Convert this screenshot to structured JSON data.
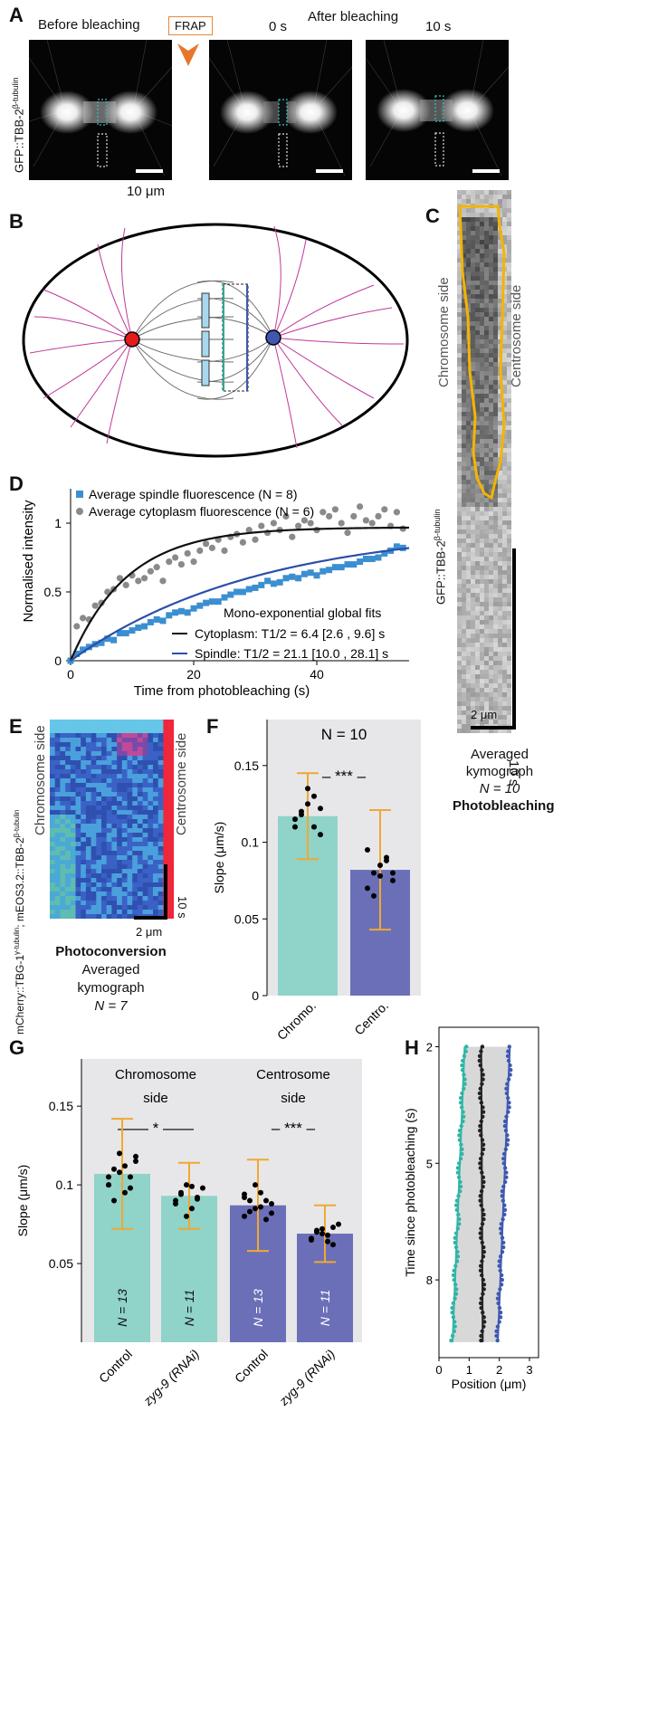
{
  "panels": {
    "A": "A",
    "B": "B",
    "C": "C",
    "D": "D",
    "E": "E",
    "F": "F",
    "G": "G",
    "H": "H"
  },
  "panelA": {
    "before": "Before bleaching",
    "after": "After bleaching",
    "frap": "FRAP",
    "t0": "0 s",
    "t10": "10 s",
    "ylabel_main": "GFP::TBB-2",
    "ylabel_sup": "β-tubulin",
    "scale": "10 μm"
  },
  "panelC": {
    "chromosome_side": "Chromosome side",
    "centrosome_side": "Centrosome side",
    "ylabel_main": "GFP::TBB-2",
    "ylabel_sup": "β-tubulin",
    "time_scale": "10 s",
    "space_scale": "2 μm",
    "caption1": "Averaged",
    "caption2": "kymograph",
    "caption3": "N = 10",
    "caption4": "Photobleaching"
  },
  "panelE": {
    "chromosome_side": "Chromosome side",
    "centrosome_side": "Centrosome side",
    "ylabel_a": "mCherry::TBG-1",
    "ylabel_a_sup": "γ-tubulin",
    "ylabel_b": "; mEOS3.2::TBB-2",
    "ylabel_b_sup": "β-tubulin",
    "time_scale": "10 s",
    "space_scale": "2 μm",
    "caption1": "Photoconversion",
    "caption2": "Averaged",
    "caption3": "kymograph",
    "caption4": "N = 7"
  },
  "chart_data": [
    {
      "id": "D",
      "type": "scatter",
      "xlabel": "Time from photobleaching (s)",
      "ylabel": "Normalised intensity",
      "xlim": [
        0,
        55
      ],
      "ylim": [
        0,
        1.25
      ],
      "xticks": [
        0,
        20,
        40
      ],
      "yticks": [
        0,
        0.5,
        1
      ],
      "legend": [
        "Average spindle fluorescence (N = 8)",
        "Average cytoplasm fluorescence (N = 6)"
      ],
      "fits_title": "Mono-exponential global fits",
      "fit_labels": [
        "Cytoplasm: T1/2 = 6.4 [2.6 , 9.6] s",
        "Spindle: T1/2 = 21.1 [10.0 , 28.1] s"
      ],
      "series": [
        {
          "name": "Average spindle fluorescence (N = 8)",
          "color": "#3b8fd0",
          "x": [
            0,
            1,
            2,
            3,
            4,
            5,
            6,
            7,
            8,
            9,
            10,
            11,
            12,
            13,
            14,
            15,
            16,
            17,
            18,
            19,
            20,
            21,
            22,
            23,
            24,
            25,
            26,
            27,
            28,
            29,
            30,
            31,
            32,
            33,
            34,
            35,
            36,
            37,
            38,
            39,
            40,
            41,
            42,
            43,
            44,
            45,
            46,
            47,
            48,
            49,
            50,
            51,
            52,
            53,
            54
          ],
          "y": [
            0.0,
            0.05,
            0.08,
            0.1,
            0.12,
            0.13,
            0.16,
            0.15,
            0.2,
            0.2,
            0.22,
            0.24,
            0.25,
            0.28,
            0.3,
            0.29,
            0.33,
            0.35,
            0.36,
            0.35,
            0.38,
            0.4,
            0.42,
            0.43,
            0.43,
            0.46,
            0.48,
            0.5,
            0.5,
            0.52,
            0.53,
            0.55,
            0.58,
            0.56,
            0.57,
            0.6,
            0.61,
            0.6,
            0.63,
            0.64,
            0.62,
            0.65,
            0.66,
            0.68,
            0.68,
            0.7,
            0.7,
            0.72,
            0.74,
            0.74,
            0.75,
            0.78,
            0.8,
            0.83,
            0.82
          ]
        },
        {
          "name": "Average cytoplasm fluorescence (N = 6)",
          "color": "#8a8a8a",
          "x": [
            1,
            2,
            3,
            4,
            5,
            6,
            7,
            8,
            9,
            10,
            11,
            12,
            13,
            14,
            15,
            16,
            17,
            18,
            19,
            20,
            21,
            22,
            23,
            24,
            25,
            26,
            27,
            28,
            29,
            30,
            31,
            32,
            33,
            34,
            35,
            36,
            37,
            38,
            39,
            40,
            41,
            42,
            43,
            44,
            45,
            46,
            47,
            48,
            49,
            50,
            51,
            52,
            53,
            54
          ],
          "y": [
            0.25,
            0.31,
            0.3,
            0.4,
            0.42,
            0.5,
            0.52,
            0.6,
            0.55,
            0.62,
            0.58,
            0.6,
            0.65,
            0.68,
            0.58,
            0.72,
            0.75,
            0.7,
            0.78,
            0.72,
            0.8,
            0.85,
            0.82,
            0.88,
            0.8,
            0.9,
            0.92,
            0.86,
            0.95,
            0.88,
            0.98,
            0.93,
            1.0,
            0.95,
            1.05,
            0.9,
            0.98,
            1.02,
            1.0,
            0.95,
            1.08,
            1.05,
            1.1,
            1.0,
            0.93,
            1.05,
            1.12,
            1.02,
            1.0,
            1.05,
            1.1,
            0.98,
            1.08,
            0.96
          ]
        },
        {
          "name": "Cytoplasm fit",
          "color": "#111111",
          "halflife": 6.4,
          "plateau": 0.97
        },
        {
          "name": "Spindle fit",
          "color": "#2a4fa8",
          "halflife": 21.1,
          "plateau": 0.98
        }
      ]
    },
    {
      "id": "F",
      "type": "bar",
      "title": "N = 10",
      "ylabel": "Slope (μm/s)",
      "ylim": [
        0,
        0.18
      ],
      "yticks": [
        0,
        0.05,
        0.1,
        0.15
      ],
      "categories": [
        "Chromo.",
        "Centro."
      ],
      "values": [
        0.117,
        0.082
      ],
      "errors": [
        0.028,
        0.039
      ],
      "colors": [
        "#8fd3c9",
        "#6b6fb8"
      ],
      "significance": "– *** –",
      "points": [
        [
          0.11,
          0.12,
          0.125,
          0.13,
          0.105,
          0.115,
          0.118,
          0.135,
          0.11,
          0.122
        ],
        [
          0.07,
          0.08,
          0.085,
          0.09,
          0.075,
          0.095,
          0.065,
          0.078,
          0.088,
          0.08
        ]
      ]
    },
    {
      "id": "G",
      "type": "bar",
      "ylabel": "Slope (μm/s)",
      "ylim": [
        0,
        0.18
      ],
      "yticks": [
        0.05,
        0.1,
        0.15
      ],
      "categories": [
        "Control",
        "zyg-9 (RNAi)",
        "Control",
        "zyg-9 (RNAi)"
      ],
      "groups": [
        "Chromosome side",
        "Centrosome side"
      ],
      "values": [
        0.107,
        0.093,
        0.087,
        0.069
      ],
      "errors": [
        0.035,
        0.021,
        0.029,
        0.018
      ],
      "colors": [
        "#8fd3c9",
        "#8fd3c9",
        "#6b6fb8",
        "#6b6fb8"
      ],
      "n_labels": [
        "N = 13",
        "N = 11",
        "N = 13",
        "N = 11"
      ],
      "significance": [
        "—— * ——",
        "– *** –"
      ],
      "points": [
        [
          0.1,
          0.11,
          0.12,
          0.095,
          0.105,
          0.115,
          0.1,
          0.09,
          0.108,
          0.112,
          0.098,
          0.118,
          0.105
        ],
        [
          0.09,
          0.095,
          0.1,
          0.085,
          0.092,
          0.098,
          0.088,
          0.094,
          0.08,
          0.099,
          0.091
        ],
        [
          0.08,
          0.09,
          0.085,
          0.095,
          0.078,
          0.088,
          0.092,
          0.083,
          0.1,
          0.086,
          0.09,
          0.082,
          0.094
        ],
        [
          0.065,
          0.07,
          0.072,
          0.068,
          0.062,
          0.075,
          0.066,
          0.071,
          0.069,
          0.064,
          0.073
        ]
      ]
    },
    {
      "id": "H",
      "type": "scatter",
      "xlabel": "Position (μm)",
      "ylabel": "Time since photobleaching (s)",
      "xlim": [
        0,
        3.3
      ],
      "ylim": [
        1.5,
        10
      ],
      "xticks": [
        0,
        1,
        2,
        3
      ],
      "yticks": [
        2,
        5,
        8
      ],
      "y_inverted": true,
      "series": [
        {
          "name": "",
          "color": "#2fb5a5",
          "x0": 0.85,
          "x1": 0.45,
          "y0": 2,
          "y1": 9.6
        },
        {
          "name": "",
          "color": "#222222",
          "x0": 1.4,
          "x1": 1.45,
          "y0": 2,
          "y1": 9.6
        },
        {
          "name": "",
          "color": "#3f58b0",
          "x0": 2.35,
          "x1": 1.95,
          "y0": 2,
          "y1": 9.6
        }
      ]
    }
  ]
}
